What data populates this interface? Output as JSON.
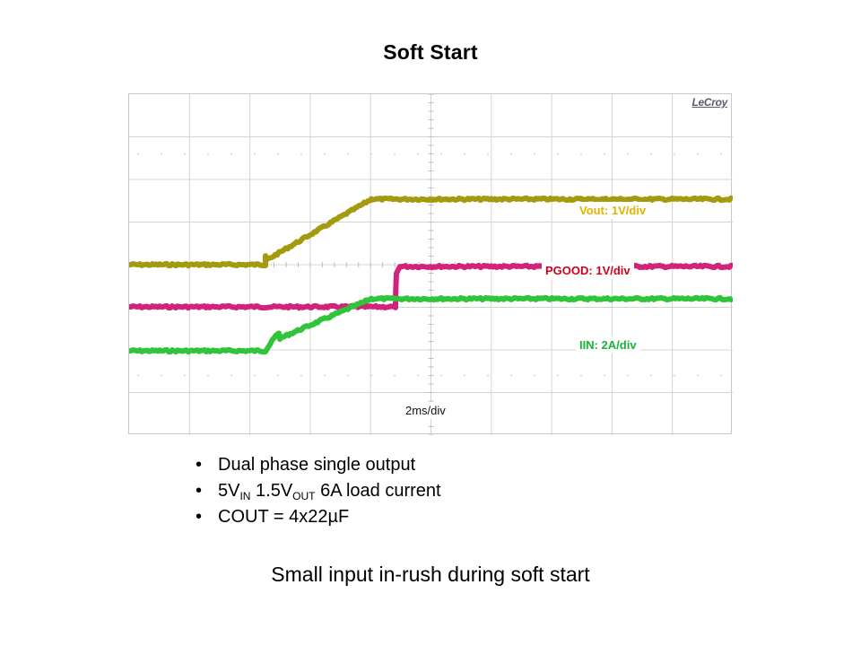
{
  "title": "Soft Start",
  "scope": {
    "brand": "LeCroy",
    "time_div": "2ms/div",
    "grid": true,
    "colors": {
      "vout": "#a39a0e",
      "pgood": "#d1237a",
      "iin": "#2fc43a",
      "vout_label": "#e0b400",
      "pgood_label": "#d0001c",
      "iin_label": "#18b33a"
    },
    "traces": [
      {
        "name": "vout",
        "label": "Vout: 1V/div"
      },
      {
        "name": "pgood",
        "label": "PGOOD: 1V/div"
      },
      {
        "name": "iin",
        "label": "IIN: 2A/div"
      }
    ]
  },
  "bullets": [
    {
      "text": "Dual phase single output"
    },
    {
      "parts": [
        {
          "t": "5V"
        },
        {
          "sub": "IN"
        },
        {
          "t": " 1.5V"
        },
        {
          "sub": "OUT"
        },
        {
          "t": " 6A load current"
        }
      ]
    },
    {
      "text": "COUT = 4x22µF"
    }
  ],
  "caption": "Small input in-rush during soft start"
}
